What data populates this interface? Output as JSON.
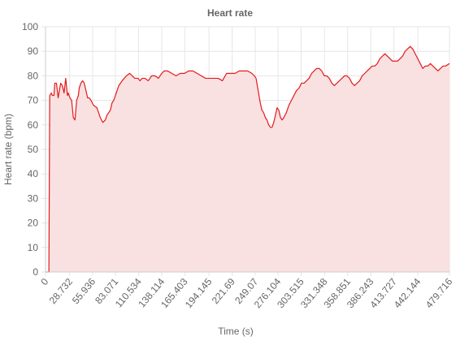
{
  "chart_data": {
    "type": "area",
    "title": "Heart rate",
    "xlabel": "Time (s)",
    "ylabel": "Heart rate (bpm)",
    "xlim": [
      0,
      479.716
    ],
    "ylim": [
      0,
      100
    ],
    "yticks": [
      0,
      10,
      20,
      30,
      40,
      50,
      60,
      70,
      80,
      90,
      100
    ],
    "xtick_labels": [
      "0",
      "28.732",
      "55.936",
      "83.071",
      "110.534",
      "138.114",
      "165.403",
      "194.145",
      "221.69",
      "249.07",
      "276.104",
      "303.515",
      "331.348",
      "358.851",
      "386.243",
      "413.727",
      "442.144",
      "479.716"
    ],
    "grid": true,
    "legend": "none",
    "line_color": "#e41a1c",
    "fill_color": "#f9e0e1",
    "series": [
      {
        "x": [
          0,
          4,
          5,
          7,
          8,
          10,
          11,
          13,
          15,
          18,
          20,
          22,
          24,
          26,
          27,
          29,
          31,
          33,
          35,
          37,
          39,
          40,
          42,
          44,
          46,
          48,
          50,
          52,
          54,
          57,
          61,
          65,
          68,
          71,
          73,
          75,
          77,
          79,
          81,
          83,
          87,
          91,
          96,
          100,
          103,
          106,
          108,
          110,
          112,
          115,
          118,
          122,
          126,
          130,
          134,
          138,
          141,
          145,
          150,
          155,
          160,
          165,
          170,
          175,
          180,
          185,
          190,
          195,
          200,
          205,
          210,
          215,
          220,
          225,
          230,
          235,
          240,
          245,
          248,
          250,
          251,
          253,
          255,
          257,
          259,
          261,
          263,
          265,
          267,
          269,
          271,
          273,
          275,
          277,
          279,
          281,
          283,
          286,
          289,
          292,
          295,
          298,
          301,
          304,
          307,
          310,
          313,
          316,
          319,
          322,
          325,
          328,
          331,
          334,
          337,
          340,
          343,
          346,
          349,
          352,
          355,
          358,
          361,
          364,
          367,
          370,
          373,
          376,
          379,
          382,
          385,
          388,
          391,
          394,
          397,
          400,
          403,
          406,
          409,
          412,
          415,
          418,
          421,
          424,
          427,
          430,
          433,
          436,
          439,
          442,
          445,
          448,
          451,
          454,
          457,
          460,
          463,
          466,
          469,
          472,
          475,
          479.716
        ],
        "y": [
          0,
          0,
          72,
          73,
          72,
          72,
          77,
          77,
          71,
          77,
          76,
          73,
          79,
          72,
          73,
          71,
          70,
          63,
          62,
          70,
          72,
          75,
          77,
          78,
          77,
          74,
          71,
          71,
          70,
          68,
          67,
          63,
          61,
          62,
          64,
          65,
          66,
          69,
          70,
          72,
          76,
          78,
          80,
          81,
          80,
          79,
          79,
          79,
          78,
          79,
          79,
          78,
          80,
          80,
          79,
          81,
          82,
          82,
          81,
          80,
          81,
          81,
          82,
          82,
          81,
          80,
          79,
          79,
          79,
          79,
          78,
          81,
          81,
          81,
          82,
          82,
          82,
          81,
          80,
          79,
          77,
          73,
          69,
          66,
          65,
          63,
          62,
          60,
          59,
          59,
          61,
          64,
          67,
          66,
          63,
          62,
          63,
          65,
          68,
          70,
          72,
          74,
          75,
          77,
          77,
          78,
          79,
          81,
          82,
          83,
          83,
          82,
          80,
          80,
          79,
          77,
          76,
          77,
          78,
          79,
          80,
          80,
          79,
          77,
          76,
          77,
          78,
          80,
          81,
          82,
          83,
          84,
          84,
          85,
          87,
          88,
          89,
          88,
          87,
          86,
          86,
          86,
          87,
          88,
          90,
          91,
          92,
          91,
          89,
          87,
          85,
          83,
          84,
          84,
          85,
          84,
          83,
          82,
          83,
          84,
          84,
          85
        ]
      }
    ]
  }
}
